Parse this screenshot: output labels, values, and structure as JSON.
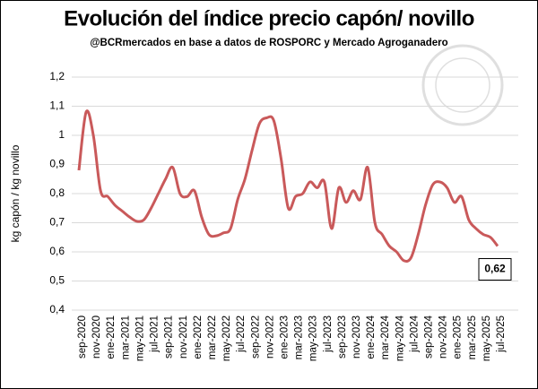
{
  "chart_data": {
    "type": "line",
    "title": "Evolución del índice precio capón/ novillo",
    "subtitle": "@BCRmercados en base a datos de ROSPORC y Mercado Agroganadero",
    "y_label": "kg capón / kg novillo",
    "categories": [
      "sep-2020",
      null,
      "nov-2020",
      null,
      "ene-2021",
      null,
      "mar-2021",
      null,
      "may-2021",
      null,
      "jul-2021",
      null,
      "sep-2021",
      null,
      "nov-2021",
      null,
      "ene-2022",
      null,
      "mar-2022",
      null,
      "may-2022",
      null,
      "jul-2022",
      null,
      "sep-2022",
      null,
      "nov-2022",
      null,
      "ene-2023",
      null,
      "mar-2023",
      null,
      "may-2023",
      null,
      "jul-2023",
      null,
      "sep-2023",
      null,
      "nov-2023",
      null,
      "ene-2024",
      null,
      "mar-2024",
      null,
      "may-2024",
      null,
      "jul-2024",
      null,
      "sep-2024",
      null,
      "nov-2024",
      null,
      "ene-2025",
      null,
      "mar-2025",
      null,
      "may-2025",
      null,
      "jul-2025"
    ],
    "series": [
      {
        "name": "capón/novillo",
        "color": "#c9595a",
        "values": [
          0.88,
          1.08,
          1.0,
          0.81,
          0.79,
          0.76,
          0.74,
          0.72,
          0.705,
          0.71,
          0.75,
          0.8,
          0.85,
          0.89,
          0.8,
          0.79,
          0.81,
          0.72,
          0.66,
          0.655,
          0.665,
          0.68,
          0.78,
          0.85,
          0.95,
          1.04,
          1.06,
          1.05,
          0.92,
          0.75,
          0.79,
          0.8,
          0.84,
          0.82,
          0.84,
          0.68,
          0.82,
          0.77,
          0.81,
          0.78,
          0.89,
          0.7,
          0.66,
          0.62,
          0.6,
          0.57,
          0.58,
          0.66,
          0.76,
          0.83,
          0.84,
          0.82,
          0.77,
          0.79,
          0.71,
          0.68,
          0.66,
          0.65,
          0.62
        ],
        "value_labels": [
          null,
          null,
          null,
          null,
          null,
          null,
          null,
          null,
          null,
          null,
          null,
          null,
          null,
          null,
          null,
          null,
          null,
          null,
          null,
          null,
          null,
          null,
          null,
          null,
          null,
          null,
          null,
          null,
          null,
          null,
          null,
          null,
          null,
          null,
          null,
          null,
          null,
          null,
          null,
          null,
          null,
          null,
          null,
          null,
          null,
          null,
          null,
          null,
          null,
          null,
          null,
          null,
          null,
          null,
          null,
          null,
          null,
          null,
          "0,62"
        ]
      }
    ],
    "ylim": [
      0.4,
      1.2
    ],
    "yticks": [
      {
        "value": 0.4,
        "label": "0,4"
      },
      {
        "value": 0.5,
        "label": "0,5"
      },
      {
        "value": 0.6,
        "label": "0,6"
      },
      {
        "value": 0.7,
        "label": "0,7"
      },
      {
        "value": 0.8,
        "label": "0,8"
      },
      {
        "value": 0.9,
        "label": "0,9"
      },
      1,
      {
        "value": 1.1,
        "label": "1,1"
      },
      {
        "value": 1.2,
        "label": "1,2"
      }
    ],
    "grid": true
  }
}
